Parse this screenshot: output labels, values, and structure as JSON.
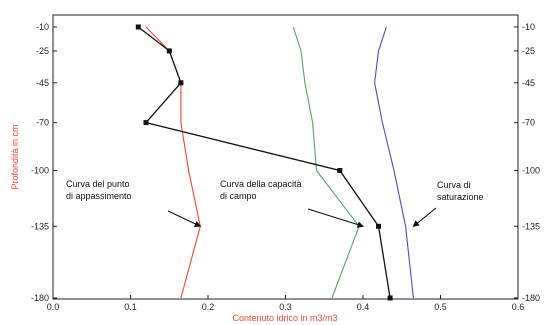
{
  "chart_data": {
    "type": "line",
    "xlabel": "Contenuto idrico in m3/m3",
    "ylabel": "Profondità in cm",
    "xlim": [
      0.0,
      0.6
    ],
    "ylim": [
      -180,
      0
    ],
    "x_ticks": [
      0.0,
      0.1,
      0.2,
      0.3,
      0.4,
      0.5,
      0.6
    ],
    "x_tick_labels": [
      "0.0",
      "0.1",
      "0.2",
      "0.3",
      "0.4",
      "0.5",
      "0.6"
    ],
    "y_ticks": [
      -10,
      -25,
      -45,
      -70,
      -100,
      -135,
      -180
    ],
    "y_tick_labels": [
      "-10",
      "-25",
      "-45",
      "-70",
      "-100",
      "-135",
      "-180"
    ],
    "grid": false,
    "series": [
      {
        "color": "#e8473a",
        "y": [
          -10,
          -25,
          -45,
          -70,
          -100,
          -135,
          -180
        ],
        "x": [
          0.12,
          0.15,
          0.165,
          0.165,
          0.175,
          0.19,
          0.165
        ]
      },
      {
        "color": "#5aa06e",
        "y": [
          -10,
          -25,
          -45,
          -70,
          -100,
          -135,
          -180
        ],
        "x": [
          0.31,
          0.32,
          0.325,
          0.335,
          0.34,
          0.395,
          0.36
        ]
      },
      {
        "color": "#4a4ac8",
        "y": [
          -10,
          -25,
          -45,
          -70,
          -100,
          -135,
          -180
        ],
        "x": [
          0.43,
          0.42,
          0.415,
          0.425,
          0.44,
          0.455,
          0.465
        ]
      },
      {
        "color": "#111111",
        "markers": true,
        "y": [
          -10,
          -25,
          -45,
          -70,
          -100,
          -135,
          -180
        ],
        "x": [
          0.11,
          0.15,
          0.165,
          0.12,
          0.37,
          0.42,
          0.435
        ]
      }
    ],
    "annotations": [
      {
        "lines": [
          "Curva del punto",
          "di appassimento"
        ],
        "target_x": 0.19,
        "target_y": -135
      },
      {
        "lines": [
          "Curva della capacità",
          "di campo"
        ],
        "target_x": 0.4,
        "target_y": -135
      },
      {
        "lines": [
          "Curva di",
          "saturazione"
        ],
        "target_x": 0.465,
        "target_y": -135
      }
    ]
  }
}
